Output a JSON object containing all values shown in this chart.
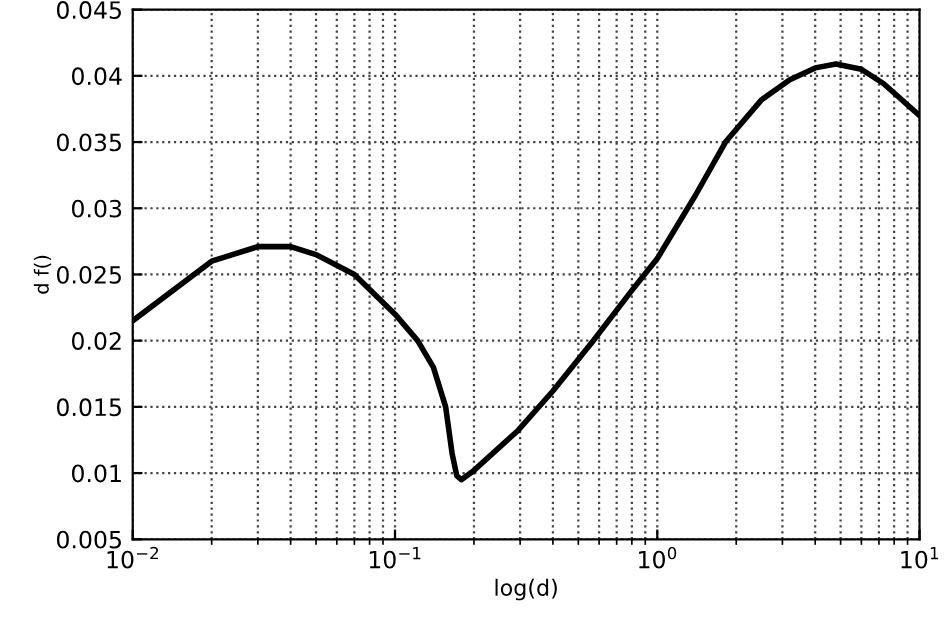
{
  "chart_data": {
    "type": "line",
    "xlabel": "log(d)",
    "ylabel": "d f()",
    "log": "x",
    "x": [
      0.01,
      0.02,
      0.03,
      0.04,
      0.05,
      0.07,
      0.1,
      0.122,
      0.14,
      0.156,
      0.165,
      0.172,
      0.179,
      0.2,
      0.294,
      0.4,
      0.57,
      0.8,
      1.0,
      1.4,
      1.82,
      2.5,
      3.2,
      4.0,
      4.8,
      6.0,
      7.3,
      10
    ],
    "series": [
      {
        "color": "#000000",
        "values": [
          0.0215,
          0.026,
          0.0271,
          0.0271,
          0.0265,
          0.025,
          0.022,
          0.02,
          0.018,
          0.015,
          0.0115,
          0.0098,
          0.0095,
          0.0102,
          0.0132,
          0.0162,
          0.02,
          0.0238,
          0.0262,
          0.031,
          0.035,
          0.0382,
          0.0397,
          0.0406,
          0.0409,
          0.0405,
          0.0394,
          0.037
        ]
      }
    ],
    "xlim": [
      0.01,
      10
    ],
    "ylim": [
      0.005,
      0.045
    ],
    "xticks": [
      {
        "value": 0.01,
        "label": "10$^{−2}$"
      },
      {
        "value": 0.1,
        "label": "10$^{−1}$"
      },
      {
        "value": 1,
        "label": "10$^{0}$"
      },
      {
        "value": 10,
        "label": "10$^{1}$"
      }
    ],
    "yticks": [
      {
        "value": 0.005,
        "label": "0.005"
      },
      {
        "value": 0.01,
        "label": "0.01"
      },
      {
        "value": 0.015,
        "label": "0.015"
      },
      {
        "value": 0.02,
        "label": "0.02"
      },
      {
        "value": 0.025,
        "label": "0.025"
      },
      {
        "value": 0.03,
        "label": "0.03"
      },
      {
        "value": 0.035,
        "label": "0.035"
      },
      {
        "value": 0.04,
        "label": "0.04"
      },
      {
        "value": 0.045,
        "label": "0.045"
      }
    ],
    "grid": true,
    "line_style": "solid",
    "marker": "none"
  }
}
